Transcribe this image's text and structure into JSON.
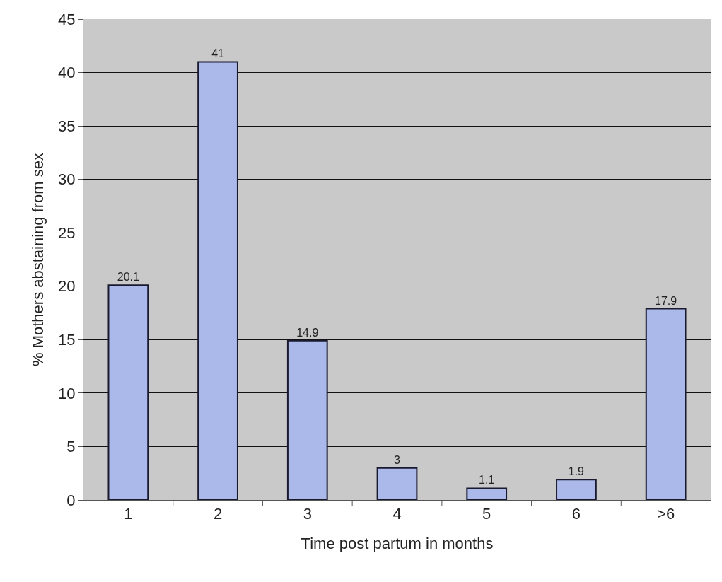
{
  "chart_data": {
    "type": "bar",
    "xlabel": "Time post partum in months",
    "ylabel": "% Mothers abstaining from sex",
    "categories": [
      "1",
      "2",
      "3",
      "4",
      "5",
      "6",
      ">6"
    ],
    "values": [
      20.1,
      41,
      14.9,
      3,
      1.1,
      1.9,
      17.9
    ],
    "color": "#aab8ea",
    "ylim": [
      0,
      45
    ],
    "yticks": [
      0,
      5,
      10,
      15,
      20,
      25,
      30,
      35,
      40,
      45
    ],
    "grid": "y",
    "data_labels": true
  }
}
